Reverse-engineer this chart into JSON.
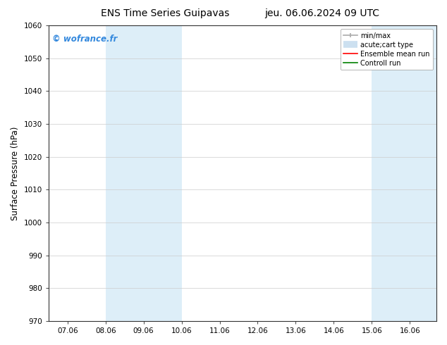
{
  "title_left": "ENS Time Series Guipavas",
  "title_right": "jeu. 06.06.2024 09 UTC",
  "ylabel": "Surface Pressure (hPa)",
  "ylim": [
    970,
    1060
  ],
  "yticks": [
    970,
    980,
    990,
    1000,
    1010,
    1020,
    1030,
    1040,
    1050,
    1060
  ],
  "xlim_dates": [
    "07.06",
    "08.06",
    "09.06",
    "10.06",
    "11.06",
    "12.06",
    "13.06",
    "14.06",
    "15.06",
    "16.06"
  ],
  "xtick_positions": [
    0,
    1,
    2,
    3,
    4,
    5,
    6,
    7,
    8,
    9
  ],
  "xlim": [
    -0.5,
    9.7
  ],
  "shaded_regions": [
    {
      "xstart": 1.0,
      "xend": 3.0,
      "color": "#ddeef8"
    },
    {
      "xstart": 8.0,
      "xend": 9.7,
      "color": "#ddeef8"
    }
  ],
  "watermark": "© wofrance.fr",
  "watermark_color": "#3388dd",
  "legend_entries": [
    {
      "label": "min/max",
      "color": "#aaaaaa",
      "lw": 1.2
    },
    {
      "label": "acute;cart type",
      "color": "#cce0f0",
      "lw": 7
    },
    {
      "label": "Ensemble mean run",
      "color": "red",
      "lw": 1.2
    },
    {
      "label": "Controll run",
      "color": "green",
      "lw": 1.2
    }
  ],
  "background_color": "#ffffff",
  "plot_bg_color": "#ffffff",
  "hgrid_color": "#cccccc",
  "spine_color": "#333333",
  "title_fontsize": 10,
  "label_fontsize": 8.5,
  "tick_fontsize": 7.5,
  "watermark_fontsize": 8.5,
  "legend_fontsize": 7
}
